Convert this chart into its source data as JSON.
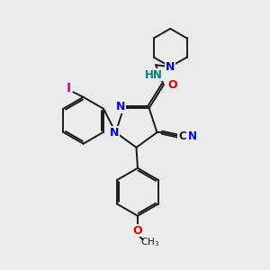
{
  "background_color": "#ebebeb",
  "bond_color": "#1a1a1a",
  "N_color": "#0000dd",
  "O_color": "#dd0000",
  "I_color": "#cc00aa",
  "teal_color": "#008080",
  "figsize": [
    3.0,
    3.0
  ],
  "dpi": 100,
  "xlim": [
    0,
    10
  ],
  "ylim": [
    0,
    10
  ]
}
